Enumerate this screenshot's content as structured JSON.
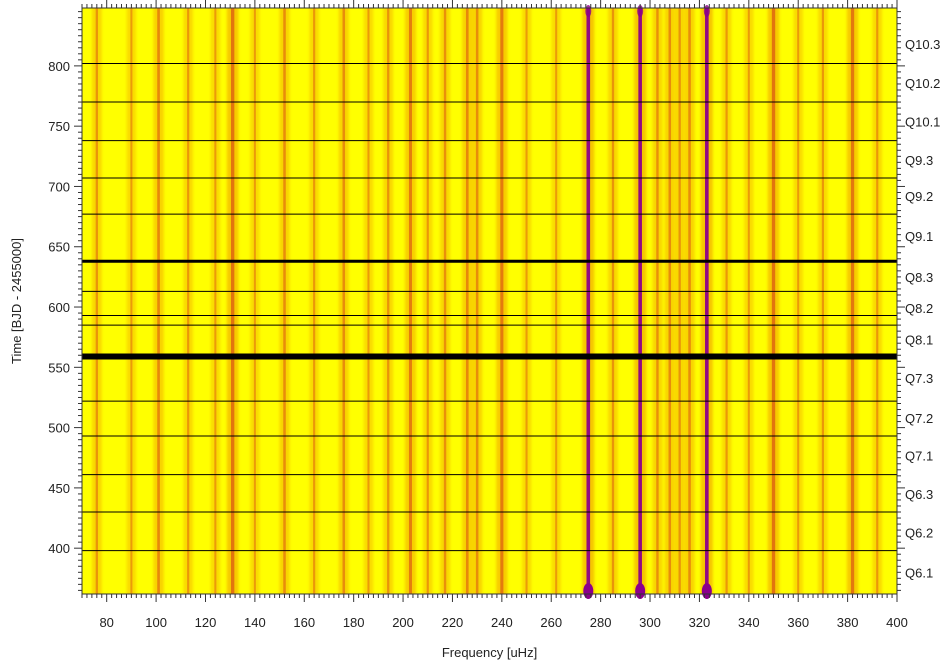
{
  "chart_data": {
    "type": "heatmap",
    "title": "",
    "xlabel": "Frequency [uHz]",
    "ylabel": "Time [BJD - 2455000]",
    "xlim": [
      70,
      400
    ],
    "ylim": [
      362,
      848
    ],
    "x_ticks": [
      80,
      100,
      120,
      140,
      160,
      180,
      200,
      220,
      240,
      260,
      280,
      300,
      320,
      340,
      360,
      380,
      400
    ],
    "y_ticks": [
      400,
      450,
      500,
      550,
      600,
      650,
      700,
      750,
      800
    ],
    "x_minor_step": 2,
    "y_minor_step": 5,
    "background_color": "#ffff00",
    "colors": {
      "low": "#ffff00",
      "mid": "#e06a10",
      "high": "#8b008b"
    },
    "grid": false,
    "quarter_boundaries": [
      {
        "time": 398,
        "weight": 1
      },
      {
        "time": 430,
        "weight": 1
      },
      {
        "time": 461,
        "weight": 1
      },
      {
        "time": 493,
        "weight": 1
      },
      {
        "time": 522,
        "weight": 1
      },
      {
        "time": 559,
        "weight": 6
      },
      {
        "time": 585,
        "weight": 1
      },
      {
        "time": 593,
        "weight": 1
      },
      {
        "time": 613,
        "weight": 1
      },
      {
        "time": 638,
        "weight": 3
      },
      {
        "time": 677,
        "weight": 1
      },
      {
        "time": 707,
        "weight": 1
      },
      {
        "time": 738,
        "weight": 1
      },
      {
        "time": 770,
        "weight": 1
      },
      {
        "time": 802,
        "weight": 1
      }
    ],
    "quarter_labels": [
      {
        "label": "Q6.1",
        "time": 380
      },
      {
        "label": "Q6.2",
        "time": 413
      },
      {
        "label": "Q6.3",
        "time": 445
      },
      {
        "label": "Q7.1",
        "time": 477
      },
      {
        "label": "Q7.2",
        "time": 508
      },
      {
        "label": "Q7.3",
        "time": 541
      },
      {
        "label": "Q8.1",
        "time": 573
      },
      {
        "label": "Q8.2",
        "time": 599
      },
      {
        "label": "Q8.3",
        "time": 625
      },
      {
        "label": "Q9.1",
        "time": 659
      },
      {
        "label": "Q9.2",
        "time": 692
      },
      {
        "label": "Q9.3",
        "time": 722
      },
      {
        "label": "Q10.1",
        "time": 754
      },
      {
        "label": "Q10.2",
        "time": 786
      },
      {
        "label": "Q10.3",
        "time": 818
      }
    ],
    "frequency_ridges": [
      {
        "freq": 76,
        "strength": 0.45
      },
      {
        "freq": 90,
        "strength": 0.35
      },
      {
        "freq": 101,
        "strength": 0.6
      },
      {
        "freq": 113,
        "strength": 0.4
      },
      {
        "freq": 124,
        "strength": 0.35
      },
      {
        "freq": 131,
        "strength": 0.9
      },
      {
        "freq": 140,
        "strength": 0.35
      },
      {
        "freq": 152,
        "strength": 0.55
      },
      {
        "freq": 164,
        "strength": 0.4
      },
      {
        "freq": 176,
        "strength": 0.55
      },
      {
        "freq": 186,
        "strength": 0.35
      },
      {
        "freq": 194,
        "strength": 0.45
      },
      {
        "freq": 203,
        "strength": 0.75
      },
      {
        "freq": 210,
        "strength": 0.4
      },
      {
        "freq": 217,
        "strength": 0.5
      },
      {
        "freq": 226,
        "strength": 0.6
      },
      {
        "freq": 230,
        "strength": 0.55
      },
      {
        "freq": 240,
        "strength": 0.8
      },
      {
        "freq": 250,
        "strength": 0.35
      },
      {
        "freq": 262,
        "strength": 0.35
      },
      {
        "freq": 275,
        "strength": 1.0
      },
      {
        "freq": 285,
        "strength": 0.45
      },
      {
        "freq": 296,
        "strength": 1.0
      },
      {
        "freq": 303,
        "strength": 0.5
      },
      {
        "freq": 308,
        "strength": 0.55
      },
      {
        "freq": 312,
        "strength": 0.45
      },
      {
        "freq": 316,
        "strength": 0.55
      },
      {
        "freq": 323,
        "strength": 1.0
      },
      {
        "freq": 331,
        "strength": 0.4
      },
      {
        "freq": 340,
        "strength": 0.35
      },
      {
        "freq": 350,
        "strength": 0.9
      },
      {
        "freq": 360,
        "strength": 0.35
      },
      {
        "freq": 370,
        "strength": 0.4
      },
      {
        "freq": 382,
        "strength": 0.85
      },
      {
        "freq": 392,
        "strength": 0.4
      }
    ]
  }
}
